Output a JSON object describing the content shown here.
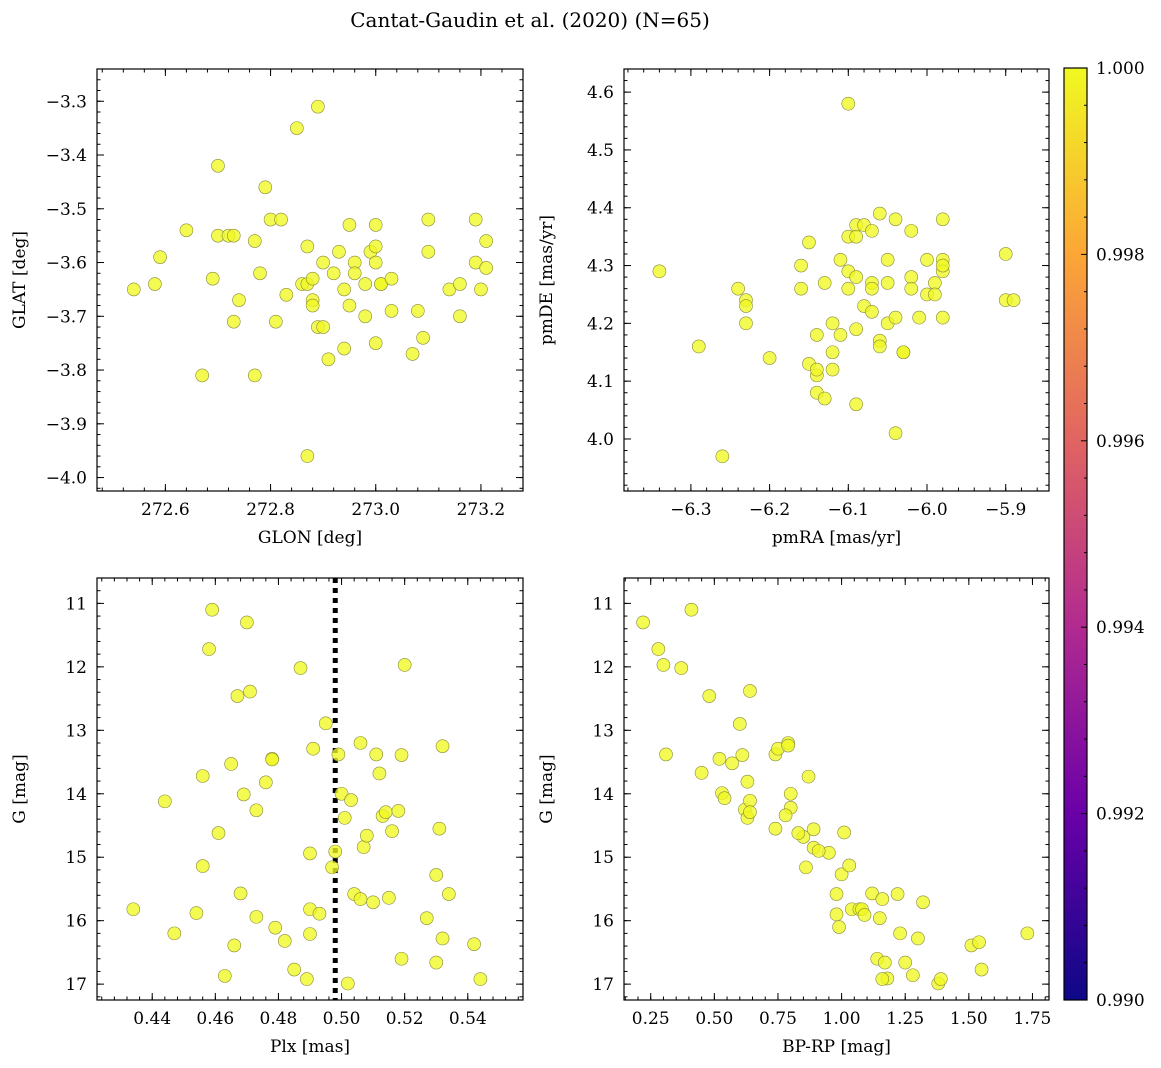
{
  "chart_data": {
    "title": "Cantat-Gaudin et al. (2020) (N=65)",
    "type": "scatter",
    "point_color": "#f0f921",
    "colorbar": {
      "range": [
        0.99,
        1.0
      ],
      "ticks": [
        "1.000",
        "0.998",
        "0.996",
        "0.994",
        "0.992",
        "0.990"
      ],
      "tick_values": [
        1.0,
        0.998,
        0.996,
        0.994,
        0.992,
        0.99
      ],
      "colormap": [
        "#0d0887",
        "#6a00a8",
        "#b12a90",
        "#e16462",
        "#fca636",
        "#f0f921"
      ]
    },
    "panels": [
      {
        "id": "glon-glat",
        "xlabel": "GLON [deg]",
        "ylabel": "GLAT [deg]",
        "xlim": [
          272.47,
          273.28
        ],
        "ylim": [
          -4.025,
          -3.24
        ],
        "invert_y": false,
        "xticks": [
          272.6,
          272.8,
          273.0,
          273.2
        ],
        "xtick_labels": [
          "272.6",
          "272.8",
          "273.0",
          "273.2"
        ],
        "yticks": [
          -3.3,
          -3.4,
          -3.5,
          -3.6,
          -3.7,
          -3.8,
          -3.9,
          -4.0
        ],
        "ytick_labels": [
          "−3.3",
          "−3.4",
          "−3.5",
          "−3.6",
          "−3.7",
          "−3.8",
          "−3.9",
          "−4.0"
        ],
        "x": [
          272.54,
          272.58,
          272.59,
          272.64,
          272.67,
          272.69,
          272.7,
          272.7,
          272.72,
          272.73,
          272.73,
          272.74,
          272.77,
          272.77,
          272.78,
          272.79,
          272.8,
          272.81,
          272.82,
          272.83,
          272.85,
          272.86,
          272.87,
          272.87,
          272.87,
          272.88,
          272.88,
          272.88,
          272.89,
          272.89,
          272.9,
          272.9,
          272.91,
          272.92,
          272.93,
          272.94,
          272.94,
          272.95,
          272.95,
          272.96,
          272.96,
          272.98,
          272.98,
          272.99,
          273.0,
          273.0,
          273.0,
          273.0,
          273.01,
          273.01,
          273.03,
          273.03,
          273.07,
          273.08,
          273.09,
          273.1,
          273.1,
          273.14,
          273.16,
          273.16,
          273.19,
          273.19,
          273.2,
          273.21,
          273.21
        ],
        "y": [
          -3.65,
          -3.64,
          -3.59,
          -3.54,
          -3.81,
          -3.63,
          -3.42,
          -3.55,
          -3.55,
          -3.71,
          -3.55,
          -3.67,
          -3.56,
          -3.81,
          -3.62,
          -3.46,
          -3.52,
          -3.71,
          -3.52,
          -3.66,
          -3.35,
          -3.64,
          -3.57,
          -3.64,
          -3.96,
          -3.67,
          -3.68,
          -3.63,
          -3.72,
          -3.31,
          -3.72,
          -3.6,
          -3.78,
          -3.62,
          -3.58,
          -3.65,
          -3.76,
          -3.53,
          -3.68,
          -3.6,
          -3.62,
          -3.64,
          -3.7,
          -3.58,
          -3.6,
          -3.75,
          -3.57,
          -3.53,
          -3.64,
          -3.64,
          -3.63,
          -3.69,
          -3.77,
          -3.69,
          -3.74,
          -3.52,
          -3.58,
          -3.65,
          -3.64,
          -3.7,
          -3.52,
          -3.6,
          -3.65,
          -3.56,
          -3.61
        ]
      },
      {
        "id": "pmra-pmde",
        "xlabel": "pmRA [mas/yr]",
        "ylabel": "pmDE [mas/yr]",
        "xlim": [
          -6.385,
          -5.845
        ],
        "ylim": [
          3.91,
          4.64
        ],
        "invert_y": false,
        "xticks": [
          -6.3,
          -6.2,
          -6.1,
          -6.0,
          -5.9
        ],
        "xtick_labels": [
          "−6.3",
          "−6.2",
          "−6.1",
          "−6.0",
          "−5.9"
        ],
        "yticks": [
          4.0,
          4.1,
          4.2,
          4.3,
          4.4,
          4.5,
          4.6
        ],
        "ytick_labels": [
          "4.0",
          "4.1",
          "4.2",
          "4.3",
          "4.4",
          "4.5",
          "4.6"
        ],
        "x": [
          -6.34,
          -6.29,
          -6.26,
          -6.24,
          -6.23,
          -6.23,
          -6.23,
          -6.2,
          -6.16,
          -6.16,
          -6.15,
          -6.15,
          -6.14,
          -6.14,
          -6.14,
          -6.14,
          -6.13,
          -6.13,
          -6.12,
          -6.12,
          -6.12,
          -6.11,
          -6.11,
          -6.1,
          -6.1,
          -6.1,
          -6.1,
          -6.09,
          -6.09,
          -6.09,
          -6.09,
          -6.09,
          -6.08,
          -6.08,
          -6.07,
          -6.07,
          -6.07,
          -6.07,
          -6.06,
          -6.06,
          -6.06,
          -6.05,
          -6.05,
          -6.05,
          -6.04,
          -6.04,
          -6.04,
          -6.03,
          -6.03,
          -6.02,
          -6.02,
          -6.02,
          -6.01,
          -6.0,
          -6.0,
          -5.99,
          -5.99,
          -5.98,
          -5.98,
          -5.98,
          -5.98,
          -5.98,
          -5.9,
          -5.9,
          -5.89
        ],
        "y": [
          4.29,
          4.16,
          3.97,
          4.26,
          4.24,
          4.23,
          4.2,
          4.14,
          4.3,
          4.26,
          4.34,
          4.13,
          4.18,
          4.08,
          4.11,
          4.12,
          4.27,
          4.07,
          4.2,
          4.15,
          4.12,
          4.18,
          4.31,
          4.35,
          4.29,
          4.26,
          4.58,
          4.37,
          4.35,
          4.28,
          4.19,
          4.06,
          4.37,
          4.23,
          4.36,
          4.27,
          4.22,
          4.26,
          4.39,
          4.17,
          4.16,
          4.2,
          4.31,
          4.27,
          4.21,
          4.38,
          4.01,
          4.15,
          4.15,
          4.36,
          4.28,
          4.26,
          4.21,
          4.31,
          4.25,
          4.27,
          4.25,
          4.38,
          4.31,
          4.29,
          4.3,
          4.21,
          4.24,
          4.32,
          4.24
        ]
      },
      {
        "id": "plx-g",
        "xlabel": "Plx [mas]",
        "ylabel": "G [mag]",
        "xlim": [
          0.4225,
          0.5575
        ],
        "ylim": [
          10.6,
          17.25
        ],
        "invert_y": true,
        "vline": 0.498,
        "xticks": [
          0.44,
          0.46,
          0.48,
          0.5,
          0.52,
          0.54
        ],
        "xtick_labels": [
          "0.44",
          "0.46",
          "0.48",
          "0.50",
          "0.52",
          "0.54"
        ],
        "yticks": [
          11,
          12,
          13,
          14,
          15,
          16,
          17
        ],
        "ytick_labels": [
          "11",
          "12",
          "13",
          "14",
          "15",
          "16",
          "17"
        ],
        "x": [
          0.434,
          0.444,
          0.447,
          0.454,
          0.456,
          0.456,
          0.458,
          0.459,
          0.461,
          0.463,
          0.465,
          0.466,
          0.467,
          0.468,
          0.469,
          0.47,
          0.471,
          0.473,
          0.473,
          0.476,
          0.478,
          0.478,
          0.479,
          0.482,
          0.485,
          0.487,
          0.489,
          0.49,
          0.49,
          0.49,
          0.491,
          0.493,
          0.495,
          0.497,
          0.498,
          0.499,
          0.5,
          0.501,
          0.502,
          0.503,
          0.504,
          0.506,
          0.506,
          0.507,
          0.508,
          0.51,
          0.511,
          0.512,
          0.513,
          0.514,
          0.515,
          0.516,
          0.518,
          0.519,
          0.519,
          0.52,
          0.527,
          0.53,
          0.53,
          0.531,
          0.532,
          0.532,
          0.534,
          0.542,
          0.544
        ],
        "y": [
          15.82,
          14.12,
          16.2,
          15.88,
          13.72,
          15.14,
          11.72,
          11.1,
          14.62,
          16.87,
          13.53,
          16.39,
          12.46,
          15.57,
          14.01,
          11.3,
          12.39,
          14.26,
          15.94,
          13.82,
          13.45,
          13.46,
          16.11,
          16.32,
          16.77,
          12.02,
          16.92,
          15.82,
          16.21,
          14.94,
          13.29,
          15.89,
          12.89,
          15.16,
          14.91,
          13.38,
          14.0,
          14.38,
          16.99,
          14.1,
          15.58,
          15.66,
          13.2,
          14.84,
          14.66,
          15.71,
          13.38,
          13.68,
          14.35,
          14.29,
          15.64,
          14.59,
          14.27,
          16.6,
          13.39,
          11.97,
          15.96,
          15.28,
          16.66,
          14.55,
          16.28,
          13.25,
          15.58,
          16.37,
          16.92
        ]
      },
      {
        "id": "bprp-g",
        "xlabel": "BP-RP [mag]",
        "ylabel": "G [mag]",
        "xlim": [
          0.145,
          1.815
        ],
        "ylim": [
          10.6,
          17.25
        ],
        "invert_y": true,
        "xticks": [
          0.25,
          0.5,
          0.75,
          1.0,
          1.25,
          1.5,
          1.75
        ],
        "xtick_labels": [
          "0.25",
          "0.50",
          "0.75",
          "1.00",
          "1.25",
          "1.50",
          "1.75"
        ],
        "yticks": [
          11,
          12,
          13,
          14,
          15,
          16,
          17
        ],
        "ytick_labels": [
          "11",
          "12",
          "13",
          "14",
          "15",
          "16",
          "17"
        ],
        "x": [
          0.22,
          0.28,
          0.3,
          0.31,
          0.37,
          0.41,
          0.45,
          0.48,
          0.52,
          0.53,
          0.54,
          0.57,
          0.6,
          0.61,
          0.62,
          0.63,
          0.63,
          0.64,
          0.64,
          0.64,
          0.74,
          0.74,
          0.75,
          0.79,
          0.79,
          0.8,
          0.8,
          0.85,
          0.86,
          0.87,
          0.89,
          0.89,
          0.95,
          0.98,
          0.98,
          0.99,
          1.0,
          1.01,
          1.03,
          1.04,
          1.07,
          1.08,
          1.09,
          1.12,
          1.14,
          1.15,
          1.16,
          1.17,
          1.18,
          1.22,
          1.23,
          1.25,
          1.28,
          1.3,
          1.32,
          1.38,
          1.39,
          1.51,
          1.54,
          1.55,
          1.73,
          0.91,
          0.78,
          0.83,
          1.16
        ],
        "y": [
          11.3,
          11.72,
          11.97,
          13.38,
          12.02,
          11.1,
          13.67,
          12.46,
          13.45,
          13.99,
          14.07,
          13.52,
          12.9,
          13.39,
          14.25,
          13.81,
          14.38,
          14.11,
          12.38,
          14.29,
          14.55,
          13.38,
          13.29,
          13.2,
          13.24,
          14.0,
          14.22,
          14.68,
          15.16,
          13.73,
          14.56,
          14.85,
          14.93,
          15.58,
          15.9,
          16.1,
          15.27,
          14.61,
          15.13,
          15.82,
          15.82,
          15.82,
          15.91,
          15.57,
          16.6,
          15.96,
          15.66,
          16.66,
          16.91,
          15.58,
          16.2,
          16.66,
          16.86,
          16.28,
          15.71,
          16.99,
          16.92,
          16.39,
          16.34,
          16.77,
          16.2,
          14.9,
          14.34,
          14.62,
          16.92
        ]
      }
    ]
  }
}
